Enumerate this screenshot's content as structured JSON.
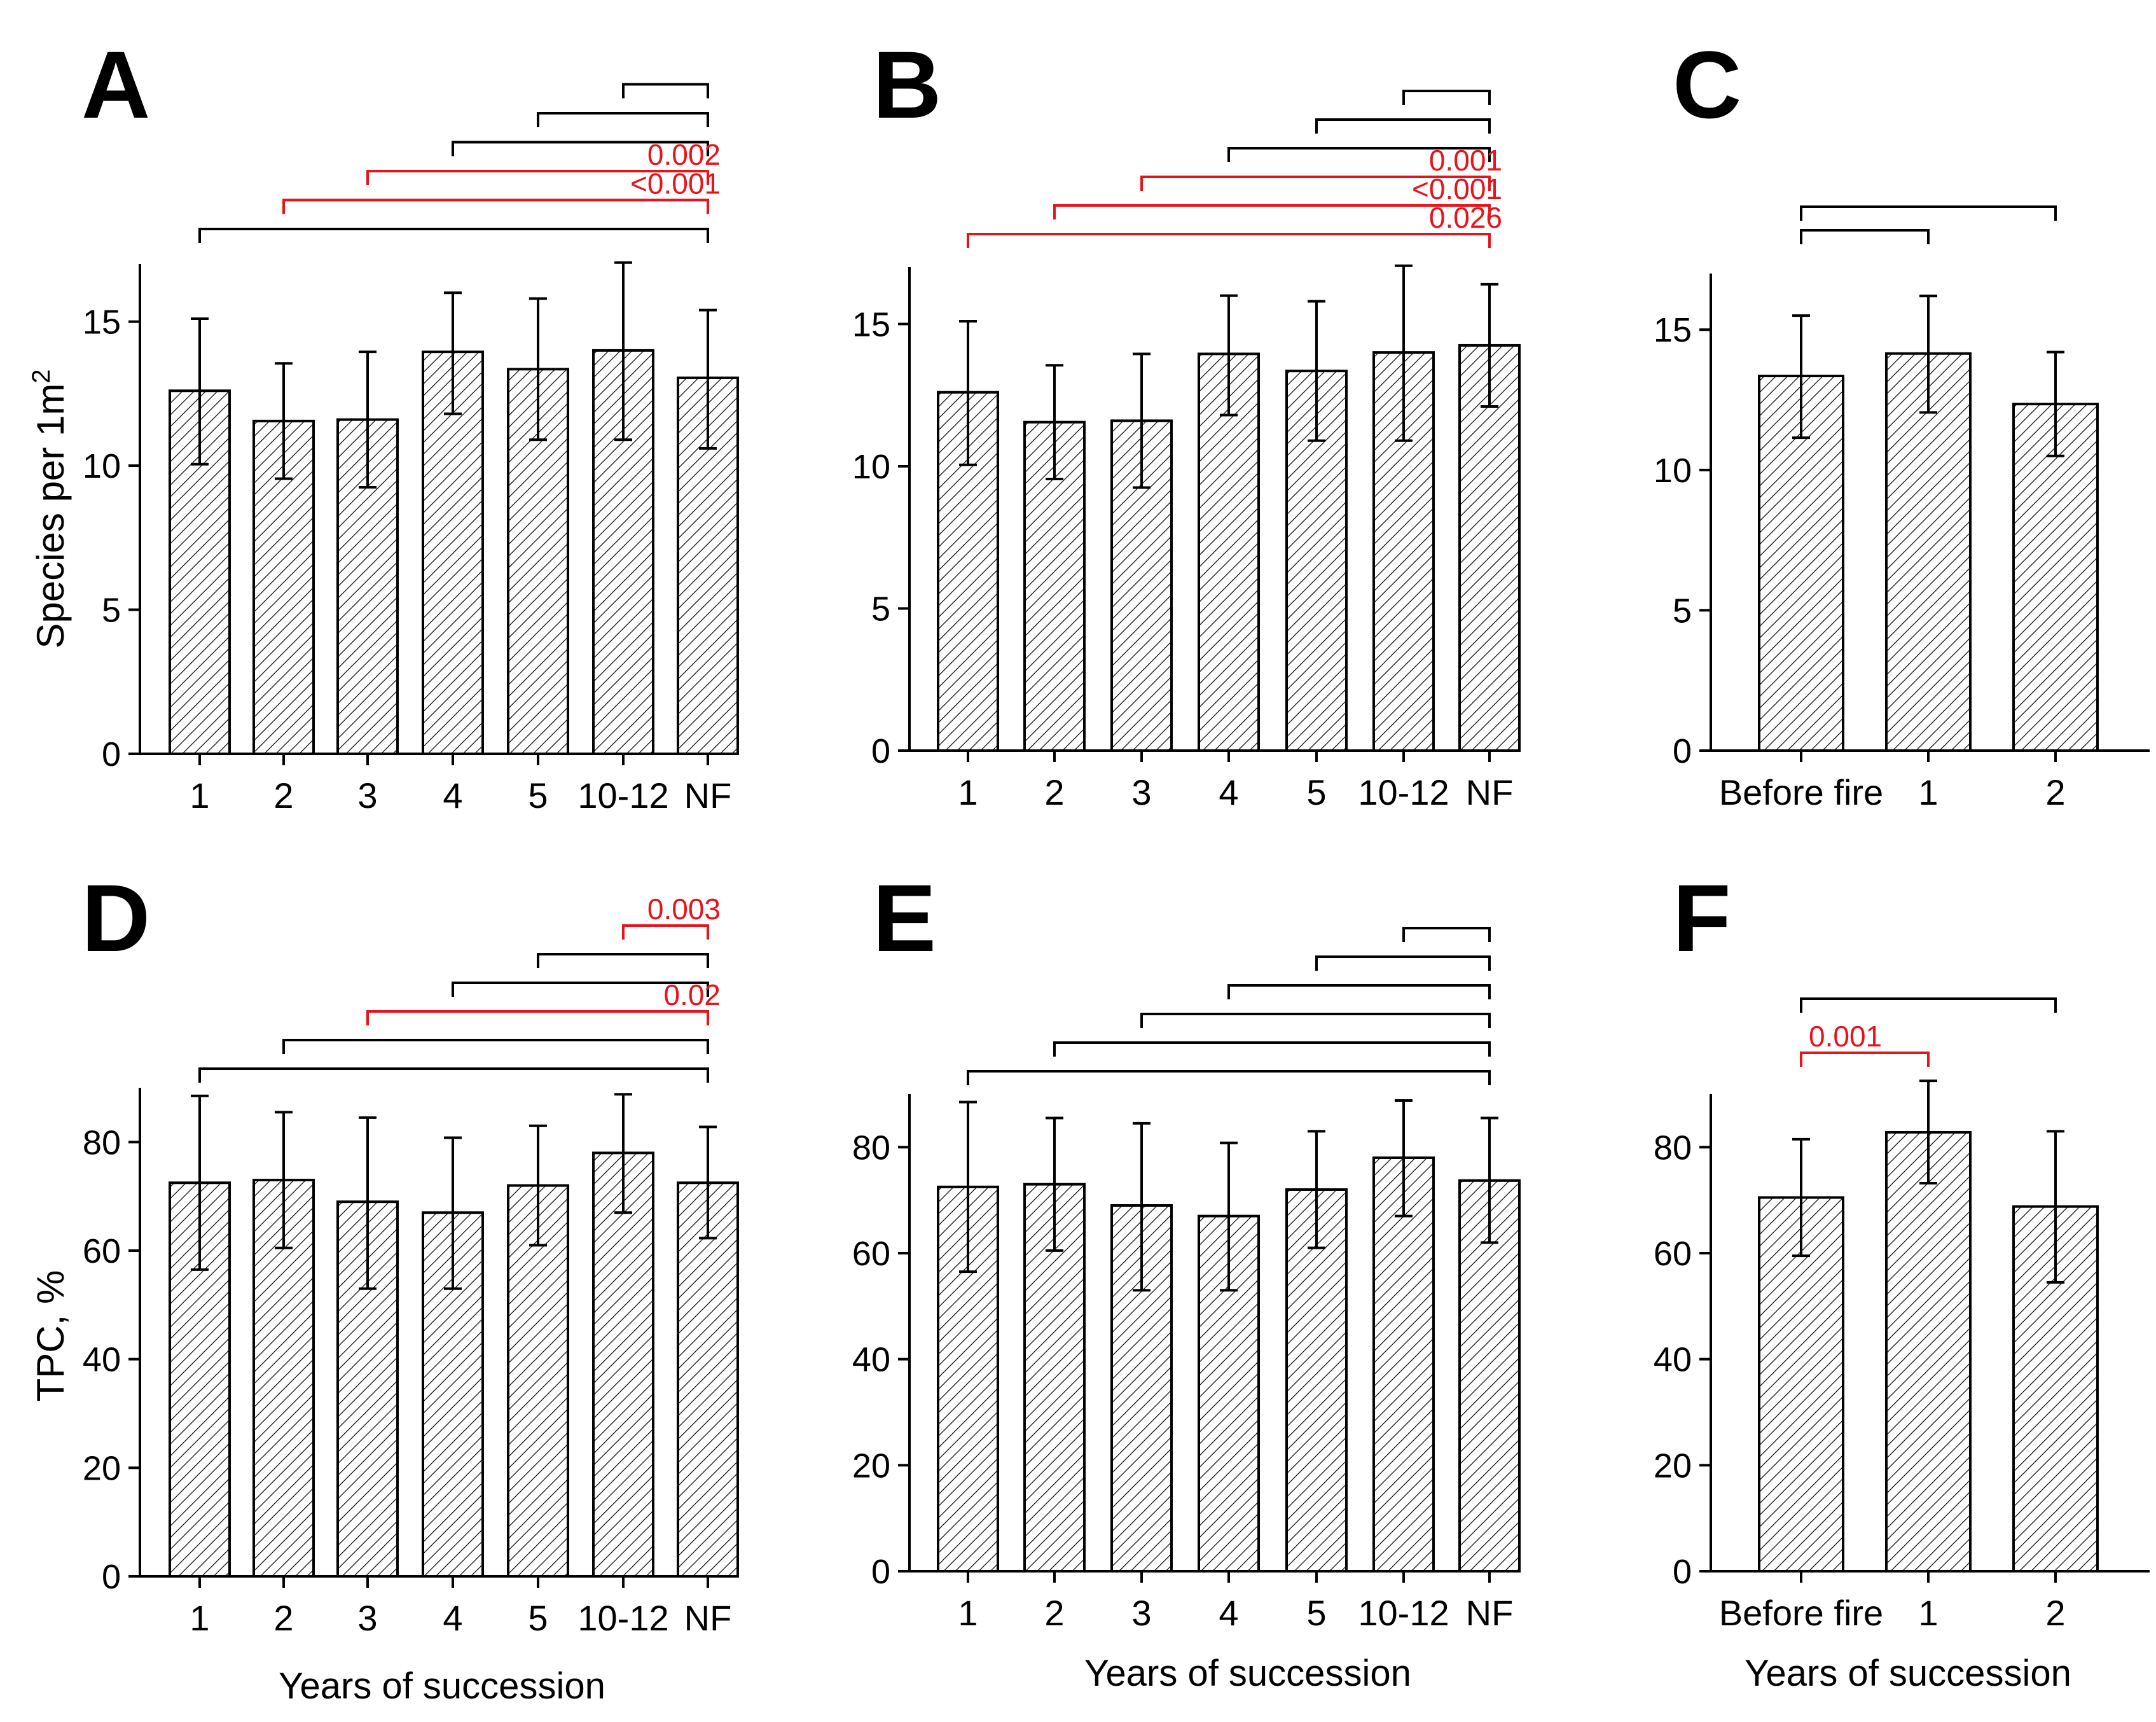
{
  "colors": {
    "axis": "#000000",
    "highlight": "#e8141b",
    "bar_fill": "#ffffff",
    "hatch": "#000000"
  },
  "x_axis_label": "Years of succession",
  "chart_data": [
    {
      "panel": "A",
      "type": "bar",
      "categories": [
        "1",
        "2",
        "3",
        "4",
        "5",
        "10-12",
        "NF"
      ],
      "values": [
        12.6,
        11.55,
        11.6,
        13.95,
        13.35,
        14.0,
        13.05
      ],
      "errors": [
        [
          10.05,
          15.1
        ],
        [
          9.55,
          13.55
        ],
        [
          9.25,
          13.95
        ],
        [
          11.8,
          16.0
        ],
        [
          10.9,
          15.8
        ],
        [
          10.9,
          17.05
        ],
        [
          10.6,
          15.4
        ]
      ],
      "ylabel_main": "Species per 1m",
      "ylabel_sup": "2",
      "ylim": [
        0,
        17
      ],
      "yticks": [
        0,
        5,
        10,
        15
      ],
      "xlabel": "",
      "comparisons": [
        {
          "from": 5,
          "to": 6,
          "label": "",
          "significant": false
        },
        {
          "from": 4,
          "to": 6,
          "label": "",
          "significant": false
        },
        {
          "from": 3,
          "to": 6,
          "label": "",
          "significant": false
        },
        {
          "from": 2,
          "to": 6,
          "label": "0.002",
          "significant": true
        },
        {
          "from": 1,
          "to": 6,
          "label": "<0.001",
          "significant": true
        },
        {
          "from": 0,
          "to": 6,
          "label": "",
          "significant": false
        }
      ]
    },
    {
      "panel": "B",
      "type": "bar",
      "categories": [
        "1",
        "2",
        "3",
        "4",
        "5",
        "10-12",
        "NF"
      ],
      "values": [
        12.6,
        11.55,
        11.6,
        13.95,
        13.35,
        14.0,
        14.25
      ],
      "errors": [
        [
          10.05,
          15.1
        ],
        [
          9.55,
          13.55
        ],
        [
          9.25,
          13.95
        ],
        [
          11.8,
          16.0
        ],
        [
          10.9,
          15.8
        ],
        [
          10.9,
          17.05
        ],
        [
          12.1,
          16.4
        ]
      ],
      "ylim": [
        0,
        17
      ],
      "yticks": [
        0,
        5,
        10,
        15
      ],
      "xlabel": "",
      "comparisons": [
        {
          "from": 5,
          "to": 6,
          "label": "",
          "significant": false
        },
        {
          "from": 4,
          "to": 6,
          "label": "",
          "significant": false
        },
        {
          "from": 3,
          "to": 6,
          "label": "",
          "significant": false
        },
        {
          "from": 2,
          "to": 6,
          "label": "0.001",
          "significant": true
        },
        {
          "from": 1,
          "to": 6,
          "label": "<0.001",
          "significant": true
        },
        {
          "from": 0,
          "to": 6,
          "label": "0.026",
          "significant": true
        }
      ]
    },
    {
      "panel": "C",
      "type": "bar",
      "categories": [
        "Before fire",
        "1",
        "2"
      ],
      "values": [
        13.35,
        14.15,
        12.35
      ],
      "errors": [
        [
          11.15,
          15.5
        ],
        [
          12.05,
          16.2
        ],
        [
          10.5,
          14.2
        ]
      ],
      "ylim": [
        0,
        17
      ],
      "yticks": [
        0,
        5,
        10,
        15
      ],
      "xlabel": "",
      "comparisons": [
        {
          "from": 0,
          "to": 1,
          "label": "",
          "significant": false
        },
        {
          "from": 0,
          "to": 2,
          "label": "",
          "significant": false
        }
      ]
    },
    {
      "panel": "D",
      "type": "bar",
      "categories": [
        "1",
        "2",
        "3",
        "4",
        "5",
        "10-12",
        "NF"
      ],
      "values": [
        72.5,
        73.0,
        69.0,
        67.0,
        72.0,
        78.0,
        72.5
      ],
      "errors": [
        [
          56.5,
          88.5
        ],
        [
          60.5,
          85.5
        ],
        [
          53.0,
          84.5
        ],
        [
          53.0,
          80.8
        ],
        [
          61.0,
          83.0
        ],
        [
          67.0,
          88.8
        ],
        [
          62.3,
          82.8
        ]
      ],
      "ylabel": "TPC, %",
      "ylim": [
        0,
        90
      ],
      "yticks": [
        0,
        20,
        40,
        60,
        80
      ],
      "xlabel": "Years of succession",
      "comparisons": [
        {
          "from": 5,
          "to": 6,
          "label": "0.003",
          "significant": true
        },
        {
          "from": 4,
          "to": 6,
          "label": "",
          "significant": false
        },
        {
          "from": 3,
          "to": 6,
          "label": "",
          "significant": false
        },
        {
          "from": 2,
          "to": 6,
          "label": "0.02",
          "significant": true
        },
        {
          "from": 1,
          "to": 6,
          "label": "",
          "significant": false
        },
        {
          "from": 0,
          "to": 6,
          "label": "",
          "significant": false
        }
      ]
    },
    {
      "panel": "E",
      "type": "bar",
      "categories": [
        "1",
        "2",
        "3",
        "4",
        "5",
        "10-12",
        "NF"
      ],
      "values": [
        72.5,
        73.0,
        69.0,
        67.0,
        72.0,
        78.0,
        73.7
      ],
      "errors": [
        [
          56.5,
          88.5
        ],
        [
          60.5,
          85.5
        ],
        [
          53.0,
          84.5
        ],
        [
          53.0,
          80.8
        ],
        [
          61.0,
          83.0
        ],
        [
          67.0,
          88.8
        ],
        [
          62.0,
          85.5
        ]
      ],
      "ylim": [
        0,
        90
      ],
      "yticks": [
        0,
        20,
        40,
        60,
        80
      ],
      "xlabel": "Years of succession",
      "comparisons": [
        {
          "from": 5,
          "to": 6,
          "label": "",
          "significant": false
        },
        {
          "from": 4,
          "to": 6,
          "label": "",
          "significant": false
        },
        {
          "from": 3,
          "to": 6,
          "label": "",
          "significant": false
        },
        {
          "from": 2,
          "to": 6,
          "label": "",
          "significant": false
        },
        {
          "from": 1,
          "to": 6,
          "label": "",
          "significant": false
        },
        {
          "from": 0,
          "to": 6,
          "label": "",
          "significant": false
        }
      ]
    },
    {
      "panel": "F",
      "type": "bar",
      "categories": [
        "Before fire",
        "1",
        "2"
      ],
      "values": [
        70.5,
        82.8,
        68.8
      ],
      "errors": [
        [
          59.5,
          81.5
        ],
        [
          73.2,
          92.5
        ],
        [
          54.5,
          83.0
        ]
      ],
      "ylim": [
        0,
        90
      ],
      "yticks": [
        0,
        20,
        40,
        60,
        80
      ],
      "xlabel": "Years of succession",
      "comparisons": [
        {
          "from": 0,
          "to": 1,
          "label": "0.001",
          "significant": true
        },
        {
          "from": 0,
          "to": 2,
          "label": "",
          "significant": false
        }
      ]
    }
  ]
}
